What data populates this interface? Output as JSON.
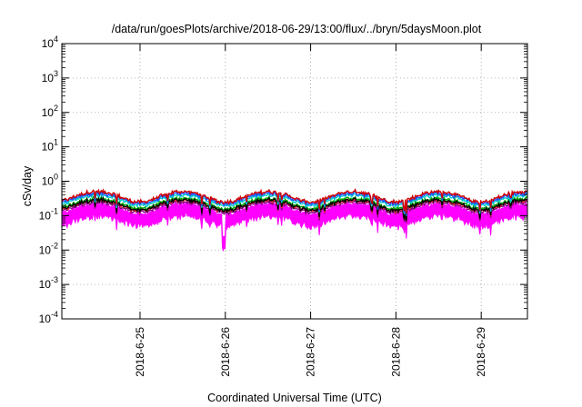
{
  "chart_data": {
    "type": "line",
    "title": "/data/run/goesPlots/archive/2018-06-29/13:00/flux/../bryn/5daysMoon.plot",
    "xlabel": "Coordinated Universal Time (UTC)",
    "ylabel": "cSv/day",
    "x_range": [
      "2018-06-24 02:00",
      "2018-06-29 13:00"
    ],
    "x_ticks": [
      "2018-6-25",
      "2018-6-26",
      "2018-6-27",
      "2018-6-28",
      "2018-6-29"
    ],
    "y_scale": "log",
    "ylim": [
      0.0001,
      10000
    ],
    "y_ticks": [
      {
        "base": "10",
        "exp": "-4"
      },
      {
        "base": "10",
        "exp": "-3"
      },
      {
        "base": "10",
        "exp": "-2"
      },
      {
        "base": "10",
        "exp": "-1"
      },
      {
        "base": "10",
        "exp": "0"
      },
      {
        "base": "10",
        "exp": "1"
      },
      {
        "base": "10",
        "exp": "2"
      },
      {
        "base": "10",
        "exp": "3"
      },
      {
        "base": "10",
        "exp": "4"
      }
    ],
    "grid": true,
    "series": [
      {
        "color": "#ff00ff",
        "level": 0.22,
        "fill": true
      },
      {
        "color": "#800080",
        "level": 0.25
      },
      {
        "color": "#ff3030",
        "level": 0.28
      },
      {
        "color": "#00aa00",
        "level": 0.32
      },
      {
        "color": "#000000",
        "level": 0.29
      },
      {
        "color": "#00cccc",
        "level": 0.4
      },
      {
        "color": "#2050ff",
        "level": 0.45
      },
      {
        "color": "#d00000",
        "level": 0.5
      }
    ]
  }
}
